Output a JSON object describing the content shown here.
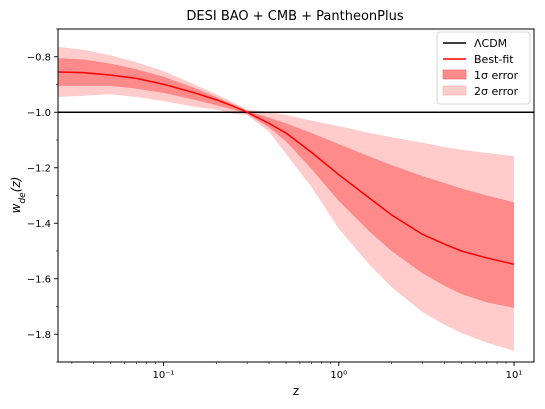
{
  "chart_data": {
    "type": "line",
    "title": "DESI BAO + CMB + PantheonPlus",
    "xlabel": "z",
    "ylabel": "w_de(z)",
    "x_scale": "log",
    "xlim": [
      0.025,
      13
    ],
    "ylim": [
      -1.9,
      -0.7
    ],
    "x_ticks": [
      {
        "value": 0.1,
        "label": "10⁻¹"
      },
      {
        "value": 1,
        "label": "10⁰"
      },
      {
        "value": 10,
        "label": "10¹"
      }
    ],
    "y_ticks": [
      {
        "value": -0.8,
        "label": "−0.8"
      },
      {
        "value": -1.0,
        "label": "−1.0"
      },
      {
        "value": -1.2,
        "label": "−1.2"
      },
      {
        "value": -1.4,
        "label": "−1.4"
      },
      {
        "value": -1.6,
        "label": "−1.6"
      },
      {
        "value": -1.8,
        "label": "−1.8"
      }
    ],
    "grid": false,
    "legend_placement": "top-right",
    "colors": {
      "lcdm": "#000000",
      "best_fit": "#ff0000",
      "sigma1": "#ff8a8a",
      "sigma2": "#ffcbcb"
    },
    "series": [
      {
        "name": "ΛCDM",
        "kind": "line",
        "x": [
          0.025,
          13
        ],
        "y": [
          -1.0,
          -1.0
        ]
      },
      {
        "name": "Best-fit",
        "kind": "line",
        "x": [
          0.025,
          0.035,
          0.05,
          0.07,
          0.1,
          0.15,
          0.2,
          0.25,
          0.3,
          0.4,
          0.5,
          0.7,
          1.0,
          1.5,
          2,
          3,
          4,
          5,
          7,
          10
        ],
        "y": [
          -0.855,
          -0.857,
          -0.866,
          -0.878,
          -0.899,
          -0.93,
          -0.955,
          -0.978,
          -1.0,
          -1.04,
          -1.075,
          -1.145,
          -1.225,
          -1.31,
          -1.37,
          -1.44,
          -1.475,
          -1.5,
          -1.525,
          -1.548
        ]
      },
      {
        "name": "1σ error",
        "kind": "band",
        "x": [
          0.025,
          0.035,
          0.05,
          0.07,
          0.1,
          0.15,
          0.2,
          0.25,
          0.3,
          0.4,
          0.5,
          0.7,
          1.0,
          1.5,
          2,
          3,
          4,
          5,
          7,
          10
        ],
        "upper": [
          -0.805,
          -0.81,
          -0.825,
          -0.845,
          -0.872,
          -0.912,
          -0.945,
          -0.972,
          -0.994,
          -1.02,
          -1.04,
          -1.075,
          -1.115,
          -1.16,
          -1.19,
          -1.23,
          -1.255,
          -1.275,
          -1.3,
          -1.325
        ],
        "lower": [
          -0.905,
          -0.905,
          -0.905,
          -0.915,
          -0.93,
          -0.955,
          -0.975,
          -0.99,
          -1.006,
          -1.055,
          -1.105,
          -1.205,
          -1.32,
          -1.43,
          -1.5,
          -1.58,
          -1.625,
          -1.655,
          -1.685,
          -1.705
        ]
      },
      {
        "name": "2σ error",
        "kind": "band",
        "x": [
          0.025,
          0.035,
          0.05,
          0.07,
          0.1,
          0.15,
          0.2,
          0.25,
          0.3,
          0.4,
          0.5,
          0.7,
          1.0,
          1.5,
          2,
          3,
          4,
          5,
          7,
          10
        ],
        "upper": [
          -0.765,
          -0.775,
          -0.795,
          -0.82,
          -0.852,
          -0.9,
          -0.935,
          -0.965,
          -0.99,
          -1.0,
          -1.01,
          -1.03,
          -1.05,
          -1.075,
          -1.09,
          -1.11,
          -1.125,
          -1.135,
          -1.147,
          -1.158
        ],
        "lower": [
          -0.945,
          -0.94,
          -0.935,
          -0.945,
          -0.96,
          -0.98,
          -0.99,
          -1.005,
          -1.01,
          -1.07,
          -1.15,
          -1.27,
          -1.42,
          -1.55,
          -1.63,
          -1.72,
          -1.765,
          -1.795,
          -1.83,
          -1.86
        ]
      }
    ]
  }
}
